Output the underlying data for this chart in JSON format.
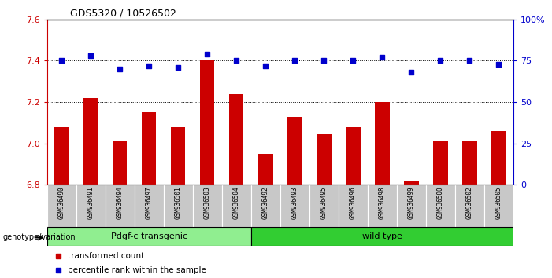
{
  "title": "GDS5320 / 10526502",
  "samples": [
    "GSM936490",
    "GSM936491",
    "GSM936494",
    "GSM936497",
    "GSM936501",
    "GSM936503",
    "GSM936504",
    "GSM936492",
    "GSM936493",
    "GSM936495",
    "GSM936496",
    "GSM936498",
    "GSM936499",
    "GSM936500",
    "GSM936502",
    "GSM936505"
  ],
  "bar_values": [
    7.08,
    7.22,
    7.01,
    7.15,
    7.08,
    7.4,
    7.24,
    6.95,
    7.13,
    7.05,
    7.08,
    7.2,
    6.82,
    7.01,
    7.01,
    7.06
  ],
  "percentile_values": [
    75,
    78,
    70,
    72,
    71,
    79,
    75,
    72,
    75,
    75,
    75,
    77,
    68,
    75,
    75,
    73
  ],
  "bar_color": "#CC0000",
  "dot_color": "#0000CC",
  "ylim_left": [
    6.8,
    7.6
  ],
  "ylim_right": [
    0,
    100
  ],
  "yticks_left": [
    6.8,
    7.0,
    7.2,
    7.4,
    7.6
  ],
  "yticks_right": [
    0,
    25,
    50,
    75,
    100
  ],
  "ytick_labels_right": [
    "0",
    "25",
    "50",
    "75",
    "100%"
  ],
  "group1_label": "Pdgf-c transgenic",
  "group2_label": "wild type",
  "group1_count": 7,
  "group2_count": 9,
  "group1_color": "#90EE90",
  "group2_color": "#32CD32",
  "genotype_label": "genotype/variation",
  "legend_bar_label": "transformed count",
  "legend_dot_label": "percentile rank within the sample",
  "bg_color": "#C8C8C8",
  "base_value": 6.8
}
